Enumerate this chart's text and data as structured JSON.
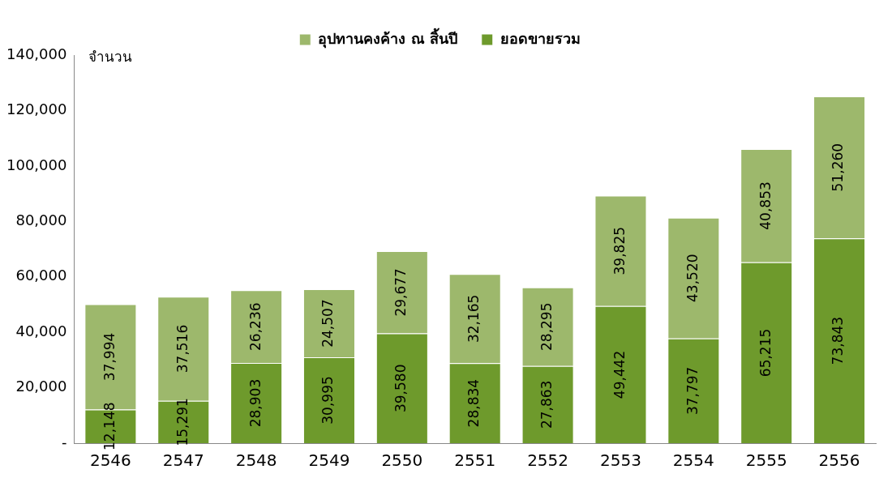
{
  "chart_data": {
    "type": "bar",
    "stacked": true,
    "ylabel": "จำนวน",
    "categories": [
      "2546",
      "2547",
      "2548",
      "2549",
      "2550",
      "2551",
      "2552",
      "2553",
      "2554",
      "2555",
      "2556"
    ],
    "series": [
      {
        "name": "ยอดขายรวม",
        "color": "#6e9a2c",
        "values": [
          12148,
          15291,
          28903,
          30995,
          39580,
          28834,
          27863,
          49442,
          37797,
          65215,
          73843
        ],
        "value_labels": [
          "12,148",
          "15,291",
          "28,903",
          "30,995",
          "39,580",
          "28,834",
          "27,863",
          "49,442",
          "37,797",
          "65,215",
          "73,843"
        ]
      },
      {
        "name": "อุปทานคงค้าง ณ สิ้นปี",
        "color": "#9db86c",
        "values": [
          37994,
          37516,
          26236,
          24507,
          29677,
          32165,
          28295,
          39825,
          43520,
          40853,
          51260
        ],
        "value_labels": [
          "37,994",
          "37,516",
          "26,236",
          "24,507",
          "29,677",
          "32,165",
          "28,295",
          "39,825",
          "43,520",
          "40,853",
          "51,260"
        ]
      }
    ],
    "ylim": [
      0,
      140000
    ],
    "yticks": [
      {
        "value": 0,
        "label": "-"
      },
      {
        "value": 20000,
        "label": "20,000"
      },
      {
        "value": 40000,
        "label": "40,000"
      },
      {
        "value": 60000,
        "label": "60,000"
      },
      {
        "value": 80000,
        "label": "80,000"
      },
      {
        "value": 100000,
        "label": "100,000"
      },
      {
        "value": 120000,
        "label": "120,000"
      },
      {
        "value": 140000,
        "label": "140,000"
      }
    ],
    "grid": false,
    "legend": "top"
  }
}
